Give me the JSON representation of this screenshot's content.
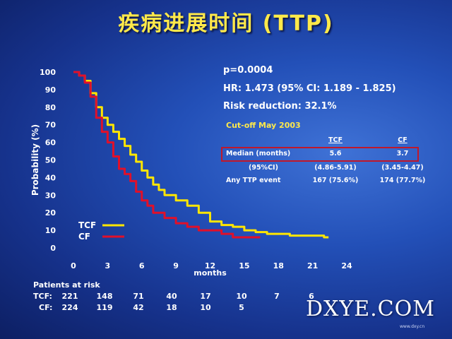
{
  "title": "疾病进展时间 (TTP)",
  "stats": {
    "p_value": "p=0.0004",
    "hr": "HR: 1.473 (95% CI: 1.189 - 1.825)",
    "risk_reduction": "Risk reduction: 32.1%"
  },
  "table": {
    "cutoff": "Cut-off May 2003",
    "col_tcf": "TCF",
    "col_cf": "CF",
    "row1_label": "Median (months)",
    "row1_tcf": "5.6",
    "row1_cf": "3.7",
    "row2_label": "(95%CI)",
    "row2_tcf": "(4.86-5.91)",
    "row2_cf": "(3.45-4.47)",
    "row3_label": "Any TTP event",
    "row3_tcf": "167 (75.6%)",
    "row3_cf": "174 (77.7%)"
  },
  "risk_table": {
    "header": "Patients at risk",
    "tcf_label": "TCF:",
    "cf_label": "CF:",
    "tcf_values": [
      "221",
      "148",
      "71",
      "40",
      "17",
      "10",
      "7",
      "6"
    ],
    "cf_values": [
      "224",
      "119",
      "42",
      "18",
      "10",
      "5"
    ]
  },
  "watermark": "DXYE.COM",
  "watermark_sub": "www.dxy.cn",
  "colors": {
    "title": "#ffe94a",
    "tcf": "#ffe600",
    "cf": "#e0102a",
    "box": "#c0182a"
  },
  "chart_data": {
    "type": "line",
    "xlabel": "months",
    "ylabel": "Probability (%)",
    "xlim": [
      0,
      24
    ],
    "ylim": [
      0,
      100
    ],
    "xticks": [
      0,
      3,
      6,
      9,
      12,
      15,
      18,
      21,
      24
    ],
    "yticks": [
      0,
      10,
      20,
      30,
      40,
      50,
      60,
      70,
      80,
      90,
      100
    ],
    "grid": false,
    "legend": "bottom-left",
    "series": [
      {
        "name": "TCF",
        "color": "#ffe600",
        "x": [
          0,
          0.5,
          1,
          1.5,
          2,
          2.5,
          3,
          3.5,
          4,
          4.5,
          5,
          5.5,
          6,
          6.5,
          7,
          7.5,
          8,
          9,
          10,
          11,
          12,
          13,
          14,
          15,
          16,
          17,
          18,
          19,
          20,
          21,
          22,
          22.4
        ],
        "y": [
          100,
          98,
          95,
          88,
          80,
          74,
          70,
          66,
          62,
          58,
          53,
          49,
          44,
          40,
          36,
          33,
          30,
          27,
          24,
          20,
          15,
          13,
          12,
          10,
          9,
          8,
          8,
          7,
          7,
          7,
          6,
          6
        ]
      },
      {
        "name": "CF",
        "color": "#e0102a",
        "x": [
          0,
          0.5,
          1,
          1.5,
          2,
          2.5,
          3,
          3.5,
          4,
          4.5,
          5,
          5.5,
          6,
          6.5,
          7,
          8,
          9,
          10,
          11,
          12,
          13,
          14,
          15,
          16,
          16.4
        ],
        "y": [
          100,
          98,
          94,
          86,
          74,
          66,
          60,
          52,
          45,
          42,
          38,
          32,
          27,
          24,
          20,
          17,
          14,
          12,
          10,
          10,
          8,
          6,
          6,
          6,
          6
        ]
      }
    ]
  }
}
